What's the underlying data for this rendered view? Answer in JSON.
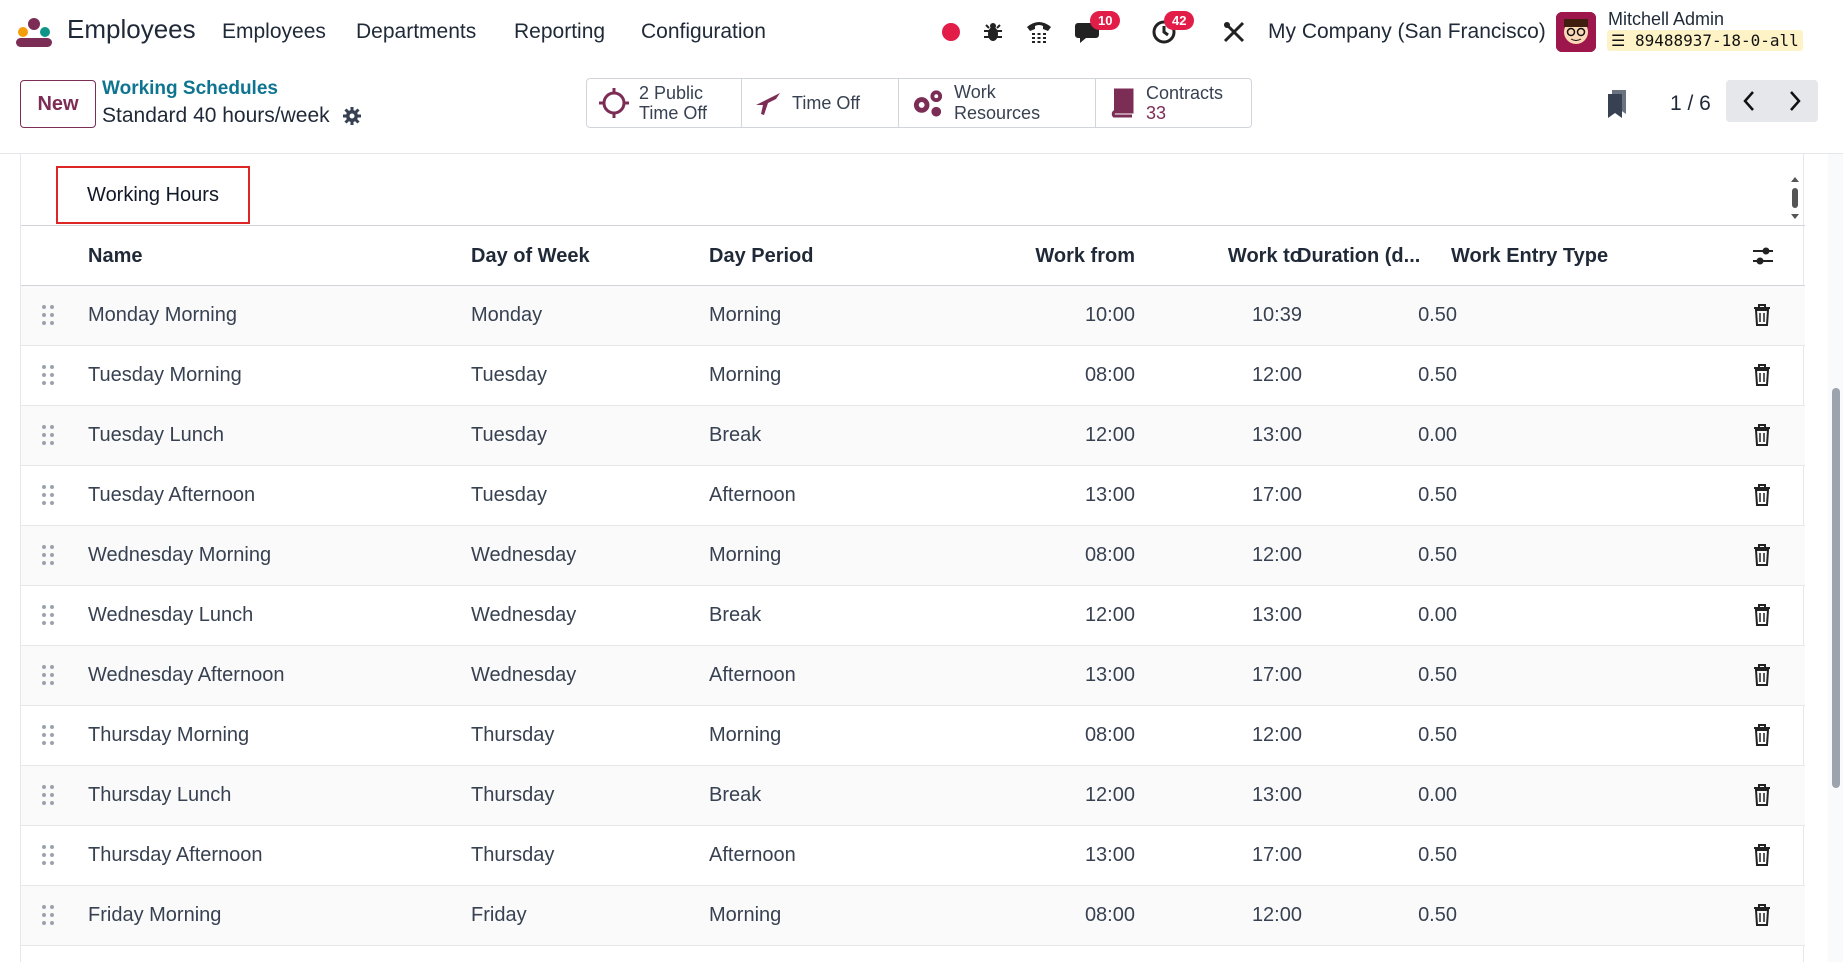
{
  "navbar": {
    "app_name": "Employees",
    "menus": [
      "Employees",
      "Departments",
      "Reporting",
      "Configuration"
    ],
    "chat_badge": "10",
    "activity_badge": "42",
    "company": "My Company (San Francisco)",
    "user_name": "Mitchell Admin",
    "db_name": "89488937-18-0-all"
  },
  "control_panel": {
    "new_label": "New",
    "breadcrumb": "Working Schedules",
    "record_title": "Standard 40 hours/week",
    "smart_buttons": {
      "public_time_off_line1": "2 Public",
      "public_time_off_line2": "Time Off",
      "time_off": "Time Off",
      "work_resources": "Work Resources",
      "contracts_label": "Contracts",
      "contracts_count": "33"
    },
    "pager": "1 / 6"
  },
  "tabs": {
    "working_hours": "Working Hours"
  },
  "table": {
    "headers": {
      "name": "Name",
      "day_of_week": "Day of Week",
      "day_period": "Day Period",
      "work_from": "Work from",
      "work_to": "Work to",
      "duration": "Duration (d...",
      "work_entry_type": "Work Entry Type"
    },
    "rows": [
      {
        "name": "Monday Morning",
        "day": "Monday",
        "period": "Morning",
        "from": "10:00",
        "to": "10:39",
        "duration": "0.50"
      },
      {
        "name": "Tuesday Morning",
        "day": "Tuesday",
        "period": "Morning",
        "from": "08:00",
        "to": "12:00",
        "duration": "0.50"
      },
      {
        "name": "Tuesday Lunch",
        "day": "Tuesday",
        "period": "Break",
        "from": "12:00",
        "to": "13:00",
        "duration": "0.00"
      },
      {
        "name": "Tuesday Afternoon",
        "day": "Tuesday",
        "period": "Afternoon",
        "from": "13:00",
        "to": "17:00",
        "duration": "0.50"
      },
      {
        "name": "Wednesday Morning",
        "day": "Wednesday",
        "period": "Morning",
        "from": "08:00",
        "to": "12:00",
        "duration": "0.50"
      },
      {
        "name": "Wednesday Lunch",
        "day": "Wednesday",
        "period": "Break",
        "from": "12:00",
        "to": "13:00",
        "duration": "0.00"
      },
      {
        "name": "Wednesday Afternoon",
        "day": "Wednesday",
        "period": "Afternoon",
        "from": "13:00",
        "to": "17:00",
        "duration": "0.50"
      },
      {
        "name": "Thursday Morning",
        "day": "Thursday",
        "period": "Morning",
        "from": "08:00",
        "to": "12:00",
        "duration": "0.50"
      },
      {
        "name": "Thursday Lunch",
        "day": "Thursday",
        "period": "Break",
        "from": "12:00",
        "to": "13:00",
        "duration": "0.00"
      },
      {
        "name": "Thursday Afternoon",
        "day": "Thursday",
        "period": "Afternoon",
        "from": "13:00",
        "to": "17:00",
        "duration": "0.50"
      },
      {
        "name": "Friday Morning",
        "day": "Friday",
        "period": "Morning",
        "from": "08:00",
        "to": "12:00",
        "duration": "0.50"
      }
    ]
  },
  "colors": {
    "brand": "#7c2d55",
    "link": "#0e7490",
    "badge": "#e11d48",
    "highlight": "#dc2626"
  }
}
